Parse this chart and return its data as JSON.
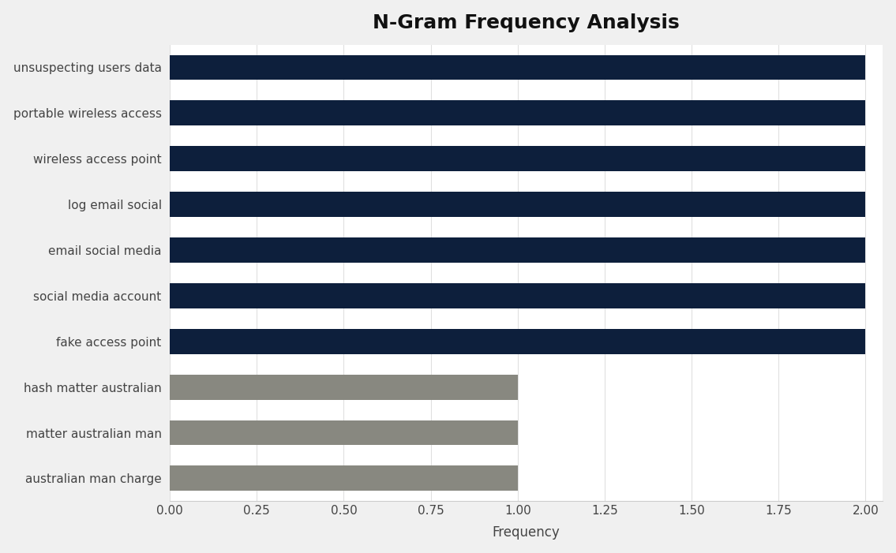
{
  "title": "N-Gram Frequency Analysis",
  "categories": [
    "australian man charge",
    "matter australian man",
    "hash matter australian",
    "fake access point",
    "social media account",
    "email social media",
    "log email social",
    "wireless access point",
    "portable wireless access",
    "unsuspecting users data"
  ],
  "values": [
    1,
    1,
    1,
    2,
    2,
    2,
    2,
    2,
    2,
    2
  ],
  "bar_colors": [
    "#888880",
    "#888880",
    "#888880",
    "#0d1f3c",
    "#0d1f3c",
    "#0d1f3c",
    "#0d1f3c",
    "#0d1f3c",
    "#0d1f3c",
    "#0d1f3c"
  ],
  "xlabel": "Frequency",
  "xlim": [
    0,
    2.05
  ],
  "xticks": [
    0.0,
    0.25,
    0.5,
    0.75,
    1.0,
    1.25,
    1.5,
    1.75,
    2.0
  ],
  "figure_bg": "#f0f0f0",
  "axes_bg": "#ffffff",
  "title_fontsize": 18,
  "label_fontsize": 12,
  "tick_fontsize": 11,
  "bar_height": 0.55
}
